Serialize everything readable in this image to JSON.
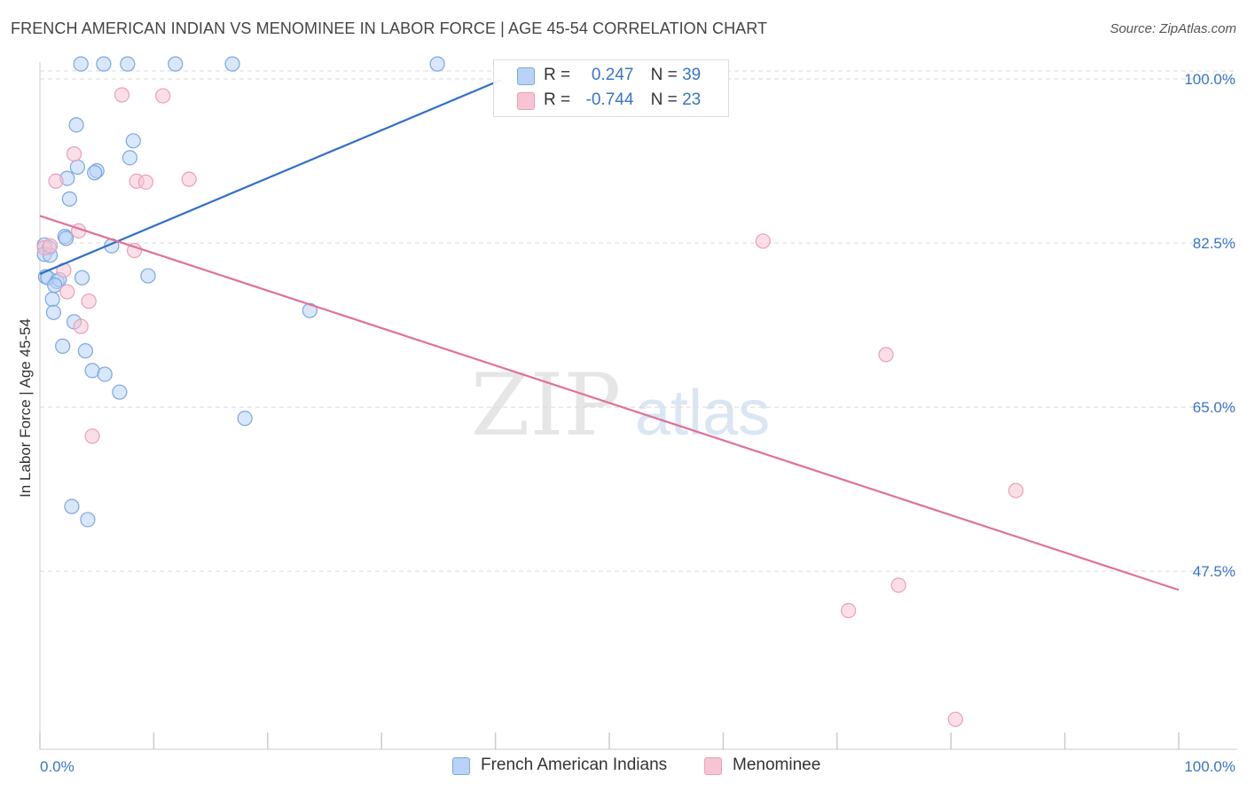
{
  "title": "FRENCH AMERICAN INDIAN VS MENOMINEE IN LABOR FORCE | AGE 45-54 CORRELATION CHART",
  "source": "Source: ZipAtlas.com",
  "watermark": {
    "zip": "ZIP",
    "atlas": "atlas"
  },
  "legend": {
    "series1": {
      "r_label": "R =",
      "r_value": "0.247",
      "n_label": "N =",
      "n_value": "39"
    },
    "series2": {
      "r_label": "R =",
      "r_value": "-0.744",
      "n_label": "N =",
      "n_value": "23"
    }
  },
  "colors": {
    "blue_fill": "#b8d3f5",
    "blue_stroke": "#7ba7e0",
    "blue_line": "#2f6fc9",
    "pink_fill": "#f7c4d3",
    "pink_stroke": "#ec9fb8",
    "pink_line": "#e0709a",
    "tick_label": "#3a74c8",
    "grid": "#d9d9d9"
  },
  "chart_data": {
    "type": "scatter",
    "title": "FRENCH AMERICAN INDIAN VS MENOMINEE IN LABOR FORCE | AGE 45-54 CORRELATION CHART",
    "xlabel": "",
    "ylabel": "In Labor Force | Age 45-54",
    "xlim": [
      0,
      100
    ],
    "ylim": [
      28.5,
      101.8
    ],
    "x_tick_labels": [
      "0.0%",
      "100.0%"
    ],
    "y_ticks": [
      47.5,
      65.0,
      82.5,
      100.0
    ],
    "y_tick_labels": [
      "47.5%",
      "65.0%",
      "82.5%",
      "100.0%"
    ],
    "grid": true,
    "legend_position": "bottom-center",
    "series": [
      {
        "name": "French American Indians",
        "color": "blue",
        "points": [
          [
            3.6,
            101.6
          ],
          [
            5.6,
            101.6
          ],
          [
            7.7,
            101.6
          ],
          [
            11.9,
            101.6
          ],
          [
            16.9,
            101.6
          ],
          [
            34.9,
            101.6
          ],
          [
            3.2,
            95.1
          ],
          [
            8.2,
            93.4
          ],
          [
            7.9,
            91.6
          ],
          [
            3.3,
            90.6
          ],
          [
            5.0,
            90.2
          ],
          [
            4.8,
            90.0
          ],
          [
            2.4,
            89.4
          ],
          [
            2.6,
            87.2
          ],
          [
            2.2,
            83.2
          ],
          [
            2.3,
            83.0
          ],
          [
            0.4,
            82.3
          ],
          [
            0.8,
            82.0
          ],
          [
            6.3,
            82.2
          ],
          [
            0.4,
            81.3
          ],
          [
            0.9,
            81.2
          ],
          [
            0.5,
            78.9
          ],
          [
            0.7,
            78.8
          ],
          [
            1.5,
            78.4
          ],
          [
            1.7,
            78.6
          ],
          [
            3.7,
            78.8
          ],
          [
            9.5,
            79.0
          ],
          [
            1.3,
            78.0
          ],
          [
            1.1,
            76.5
          ],
          [
            1.2,
            75.1
          ],
          [
            23.7,
            75.3
          ],
          [
            3.0,
            74.1
          ],
          [
            2.0,
            71.5
          ],
          [
            4.0,
            71.0
          ],
          [
            4.6,
            68.9
          ],
          [
            5.7,
            68.5
          ],
          [
            7.0,
            66.6
          ],
          [
            18.0,
            63.8
          ],
          [
            2.8,
            54.4
          ],
          [
            4.2,
            53.0
          ]
        ],
        "trend": {
          "x": [
            0,
            40.5
          ],
          "y": [
            79.2,
            99.9
          ]
        },
        "r": 0.247,
        "n": 39
      },
      {
        "name": "Menominee",
        "color": "pink",
        "points": [
          [
            7.2,
            98.3
          ],
          [
            10.8,
            98.2
          ],
          [
            3.0,
            92.0
          ],
          [
            13.1,
            89.3
          ],
          [
            1.4,
            89.1
          ],
          [
            8.5,
            89.1
          ],
          [
            9.3,
            89.0
          ],
          [
            3.4,
            83.8
          ],
          [
            0.4,
            82.0
          ],
          [
            0.9,
            82.2
          ],
          [
            8.3,
            81.7
          ],
          [
            63.5,
            82.7
          ],
          [
            2.1,
            79.6
          ],
          [
            2.4,
            77.3
          ],
          [
            4.3,
            76.3
          ],
          [
            3.6,
            73.6
          ],
          [
            74.3,
            70.6
          ],
          [
            4.6,
            61.9
          ],
          [
            85.7,
            56.1
          ],
          [
            75.4,
            46.0
          ],
          [
            71.0,
            43.3
          ],
          [
            80.4,
            31.7
          ]
        ],
        "trend": {
          "x": [
            0,
            100
          ],
          "y": [
            85.4,
            45.5
          ]
        },
        "r": -0.744,
        "n": 23
      }
    ]
  }
}
